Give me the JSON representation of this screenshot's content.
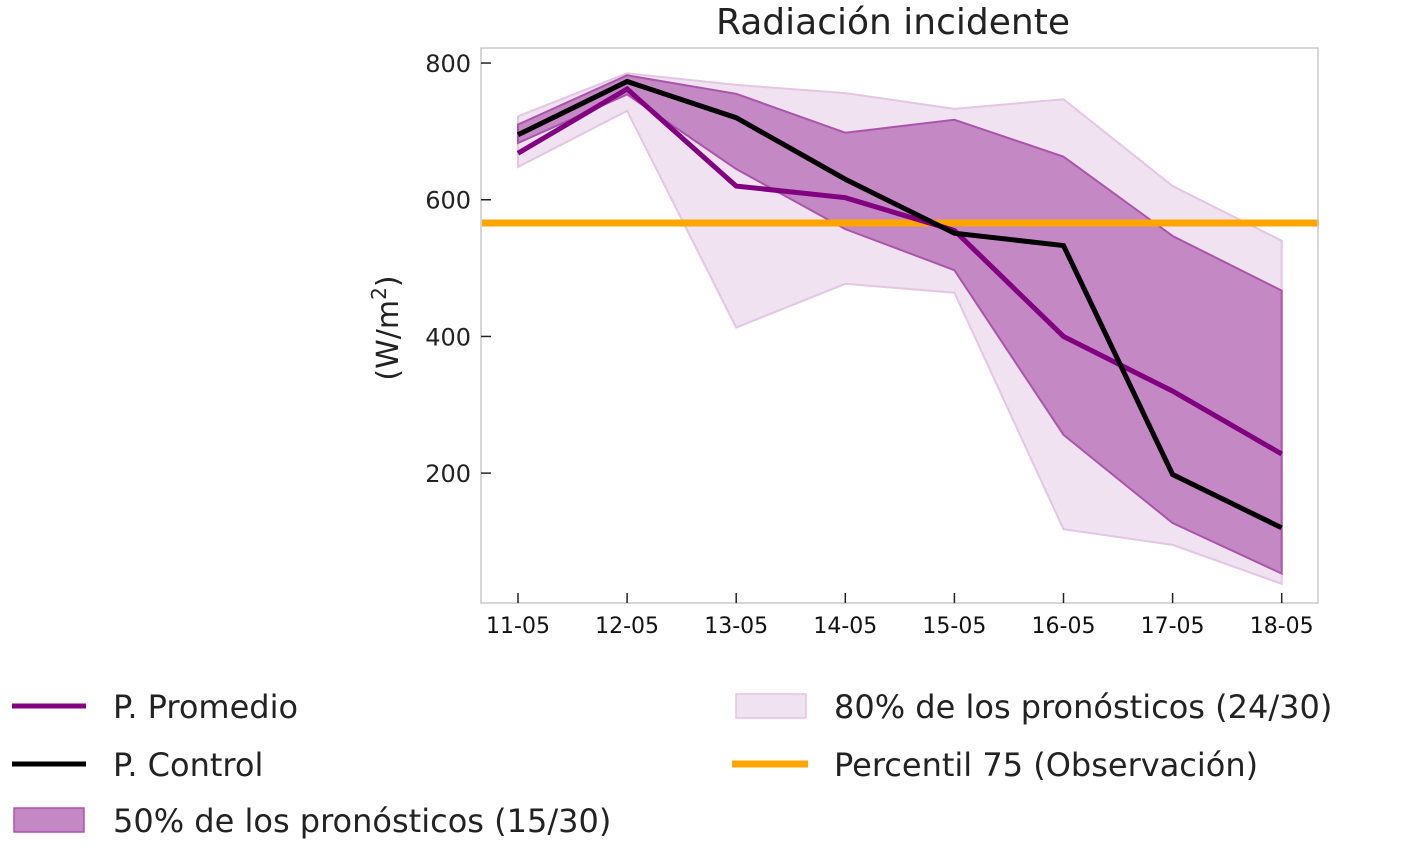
{
  "chart_data": {
    "type": "line",
    "title": "Radiación incidente",
    "xlabel": "",
    "ylabel": "(W/m",
    "ylabel_sup": "2",
    "ylabel_close": ")",
    "categories": [
      "11-05",
      "12-05",
      "13-05",
      "14-05",
      "15-05",
      "16-05",
      "17-05",
      "18-05"
    ],
    "ylim": [
      10,
      822
    ],
    "yticks": [
      200,
      400,
      600,
      800
    ],
    "grid": false,
    "legend_position": "bottom",
    "series": [
      {
        "name": "P. Promedio",
        "kind": "line",
        "color": "#800080",
        "values": [
          668,
          762,
          620,
          603,
          555,
          400,
          320,
          228
        ]
      },
      {
        "name": "P. Control",
        "kind": "line",
        "color": "#000000",
        "values": [
          695,
          773,
          720,
          630,
          551,
          533,
          198,
          120
        ]
      }
    ],
    "bands": [
      {
        "name": "80% de los pronósticos (24/30)",
        "fill": "#f0e2f0",
        "stroke": "#e2c6e2",
        "upper": [
          722,
          785,
          768,
          756,
          733,
          747,
          620,
          540
        ],
        "lower": [
          648,
          730,
          413,
          477,
          464,
          118,
          95,
          38
        ]
      },
      {
        "name": "50% de los pronósticos (15/30)",
        "fill": "#c488c4",
        "stroke": "#aa55aa",
        "upper": [
          710,
          782,
          755,
          698,
          717,
          663,
          547,
          467
        ],
        "lower": [
          683,
          754,
          645,
          557,
          497,
          256,
          127,
          53
        ]
      }
    ],
    "reference_line": {
      "name": "Percentil 75 (Observación)",
      "color": "#ffa500",
      "value": 566
    }
  }
}
